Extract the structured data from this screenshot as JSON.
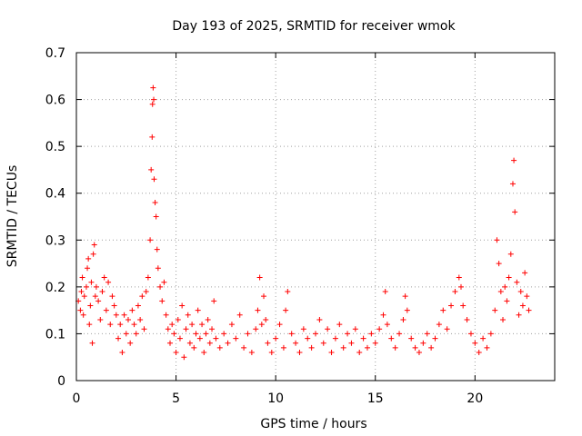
{
  "chart_data": {
    "type": "scatter",
    "title": "Day 193 of 2025, SRMTID for receiver wmok",
    "xlabel": "GPS time / hours",
    "ylabel": "SRMTID / TECUs",
    "xlim": [
      0,
      24
    ],
    "ylim": [
      0,
      0.7
    ],
    "x_ticks": [
      0,
      5,
      10,
      15,
      20
    ],
    "x_tick_labels": [
      "0",
      "5",
      "10",
      "15",
      "20"
    ],
    "y_ticks": [
      0,
      0.1,
      0.2,
      0.3,
      0.4,
      0.5,
      0.6,
      0.7
    ],
    "y_tick_labels": [
      "0",
      "0.1",
      "0.2",
      "0.3",
      "0.4",
      "0.5",
      "0.6",
      "0.7"
    ],
    "grid": true,
    "marker": "plus",
    "color": "#ff0000",
    "series": [
      {
        "name": "SRMTID",
        "points": [
          [
            0.1,
            0.17
          ],
          [
            0.2,
            0.15
          ],
          [
            0.25,
            0.19
          ],
          [
            0.3,
            0.22
          ],
          [
            0.35,
            0.14
          ],
          [
            0.4,
            0.18
          ],
          [
            0.5,
            0.2
          ],
          [
            0.55,
            0.24
          ],
          [
            0.6,
            0.26
          ],
          [
            0.65,
            0.12
          ],
          [
            0.7,
            0.16
          ],
          [
            0.75,
            0.21
          ],
          [
            0.8,
            0.08
          ],
          [
            0.85,
            0.27
          ],
          [
            0.9,
            0.29
          ],
          [
            0.95,
            0.18
          ],
          [
            1.0,
            0.2
          ],
          [
            1.1,
            0.17
          ],
          [
            1.2,
            0.13
          ],
          [
            1.3,
            0.19
          ],
          [
            1.4,
            0.22
          ],
          [
            1.5,
            0.15
          ],
          [
            1.6,
            0.21
          ],
          [
            1.7,
            0.12
          ],
          [
            1.8,
            0.18
          ],
          [
            1.9,
            0.16
          ],
          [
            2.0,
            0.14
          ],
          [
            2.1,
            0.09
          ],
          [
            2.2,
            0.12
          ],
          [
            2.3,
            0.06
          ],
          [
            2.4,
            0.14
          ],
          [
            2.5,
            0.1
          ],
          [
            2.6,
            0.13
          ],
          [
            2.7,
            0.08
          ],
          [
            2.8,
            0.15
          ],
          [
            2.9,
            0.12
          ],
          [
            3.0,
            0.1
          ],
          [
            3.1,
            0.16
          ],
          [
            3.2,
            0.13
          ],
          [
            3.3,
            0.18
          ],
          [
            3.4,
            0.11
          ],
          [
            3.5,
            0.19
          ],
          [
            3.6,
            0.22
          ],
          [
            3.7,
            0.3
          ],
          [
            3.75,
            0.45
          ],
          [
            3.8,
            0.52
          ],
          [
            3.82,
            0.59
          ],
          [
            3.85,
            0.625
          ],
          [
            3.88,
            0.6
          ],
          [
            3.9,
            0.43
          ],
          [
            3.95,
            0.38
          ],
          [
            4.0,
            0.35
          ],
          [
            4.05,
            0.28
          ],
          [
            4.1,
            0.24
          ],
          [
            4.2,
            0.2
          ],
          [
            4.3,
            0.17
          ],
          [
            4.4,
            0.21
          ],
          [
            4.5,
            0.14
          ],
          [
            4.6,
            0.11
          ],
          [
            4.7,
            0.08
          ],
          [
            4.8,
            0.12
          ],
          [
            4.9,
            0.1
          ],
          [
            5.0,
            0.06
          ],
          [
            5.1,
            0.13
          ],
          [
            5.2,
            0.09
          ],
          [
            5.3,
            0.16
          ],
          [
            5.4,
            0.05
          ],
          [
            5.5,
            0.11
          ],
          [
            5.6,
            0.14
          ],
          [
            5.7,
            0.08
          ],
          [
            5.8,
            0.12
          ],
          [
            5.9,
            0.07
          ],
          [
            6.0,
            0.1
          ],
          [
            6.1,
            0.15
          ],
          [
            6.2,
            0.09
          ],
          [
            6.3,
            0.12
          ],
          [
            6.4,
            0.06
          ],
          [
            6.5,
            0.1
          ],
          [
            6.6,
            0.13
          ],
          [
            6.7,
            0.08
          ],
          [
            6.8,
            0.11
          ],
          [
            6.9,
            0.17
          ],
          [
            7.0,
            0.09
          ],
          [
            7.2,
            0.07
          ],
          [
            7.4,
            0.1
          ],
          [
            7.6,
            0.08
          ],
          [
            7.8,
            0.12
          ],
          [
            8.0,
            0.09
          ],
          [
            8.2,
            0.14
          ],
          [
            8.4,
            0.07
          ],
          [
            8.6,
            0.1
          ],
          [
            8.8,
            0.06
          ],
          [
            9.0,
            0.11
          ],
          [
            9.1,
            0.15
          ],
          [
            9.2,
            0.22
          ],
          [
            9.3,
            0.12
          ],
          [
            9.4,
            0.18
          ],
          [
            9.5,
            0.13
          ],
          [
            9.6,
            0.08
          ],
          [
            9.8,
            0.06
          ],
          [
            10.0,
            0.09
          ],
          [
            10.2,
            0.12
          ],
          [
            10.4,
            0.07
          ],
          [
            10.5,
            0.15
          ],
          [
            10.6,
            0.19
          ],
          [
            10.8,
            0.1
          ],
          [
            11.0,
            0.08
          ],
          [
            11.2,
            0.06
          ],
          [
            11.4,
            0.11
          ],
          [
            11.6,
            0.09
          ],
          [
            11.8,
            0.07
          ],
          [
            12.0,
            0.1
          ],
          [
            12.2,
            0.13
          ],
          [
            12.4,
            0.08
          ],
          [
            12.6,
            0.11
          ],
          [
            12.8,
            0.06
          ],
          [
            13.0,
            0.09
          ],
          [
            13.2,
            0.12
          ],
          [
            13.4,
            0.07
          ],
          [
            13.6,
            0.1
          ],
          [
            13.8,
            0.08
          ],
          [
            14.0,
            0.11
          ],
          [
            14.2,
            0.06
          ],
          [
            14.4,
            0.09
          ],
          [
            14.6,
            0.07
          ],
          [
            14.8,
            0.1
          ],
          [
            15.0,
            0.08
          ],
          [
            15.2,
            0.11
          ],
          [
            15.4,
            0.14
          ],
          [
            15.5,
            0.19
          ],
          [
            15.6,
            0.12
          ],
          [
            15.8,
            0.09
          ],
          [
            16.0,
            0.07
          ],
          [
            16.2,
            0.1
          ],
          [
            16.4,
            0.13
          ],
          [
            16.5,
            0.18
          ],
          [
            16.6,
            0.15
          ],
          [
            16.8,
            0.09
          ],
          [
            17.0,
            0.07
          ],
          [
            17.2,
            0.06
          ],
          [
            17.4,
            0.08
          ],
          [
            17.6,
            0.1
          ],
          [
            17.8,
            0.07
          ],
          [
            18.0,
            0.09
          ],
          [
            18.2,
            0.12
          ],
          [
            18.4,
            0.15
          ],
          [
            18.6,
            0.11
          ],
          [
            18.8,
            0.16
          ],
          [
            19.0,
            0.19
          ],
          [
            19.2,
            0.22
          ],
          [
            19.3,
            0.2
          ],
          [
            19.4,
            0.16
          ],
          [
            19.6,
            0.13
          ],
          [
            19.8,
            0.1
          ],
          [
            20.0,
            0.08
          ],
          [
            20.2,
            0.06
          ],
          [
            20.4,
            0.09
          ],
          [
            20.6,
            0.07
          ],
          [
            20.8,
            0.1
          ],
          [
            21.0,
            0.15
          ],
          [
            21.1,
            0.3
          ],
          [
            21.2,
            0.25
          ],
          [
            21.3,
            0.19
          ],
          [
            21.4,
            0.13
          ],
          [
            21.5,
            0.2
          ],
          [
            21.6,
            0.17
          ],
          [
            21.7,
            0.22
          ],
          [
            21.8,
            0.27
          ],
          [
            21.9,
            0.42
          ],
          [
            21.95,
            0.47
          ],
          [
            22.0,
            0.36
          ],
          [
            22.1,
            0.21
          ],
          [
            22.2,
            0.14
          ],
          [
            22.3,
            0.19
          ],
          [
            22.4,
            0.16
          ],
          [
            22.5,
            0.23
          ],
          [
            22.6,
            0.18
          ],
          [
            22.7,
            0.15
          ]
        ]
      }
    ]
  }
}
